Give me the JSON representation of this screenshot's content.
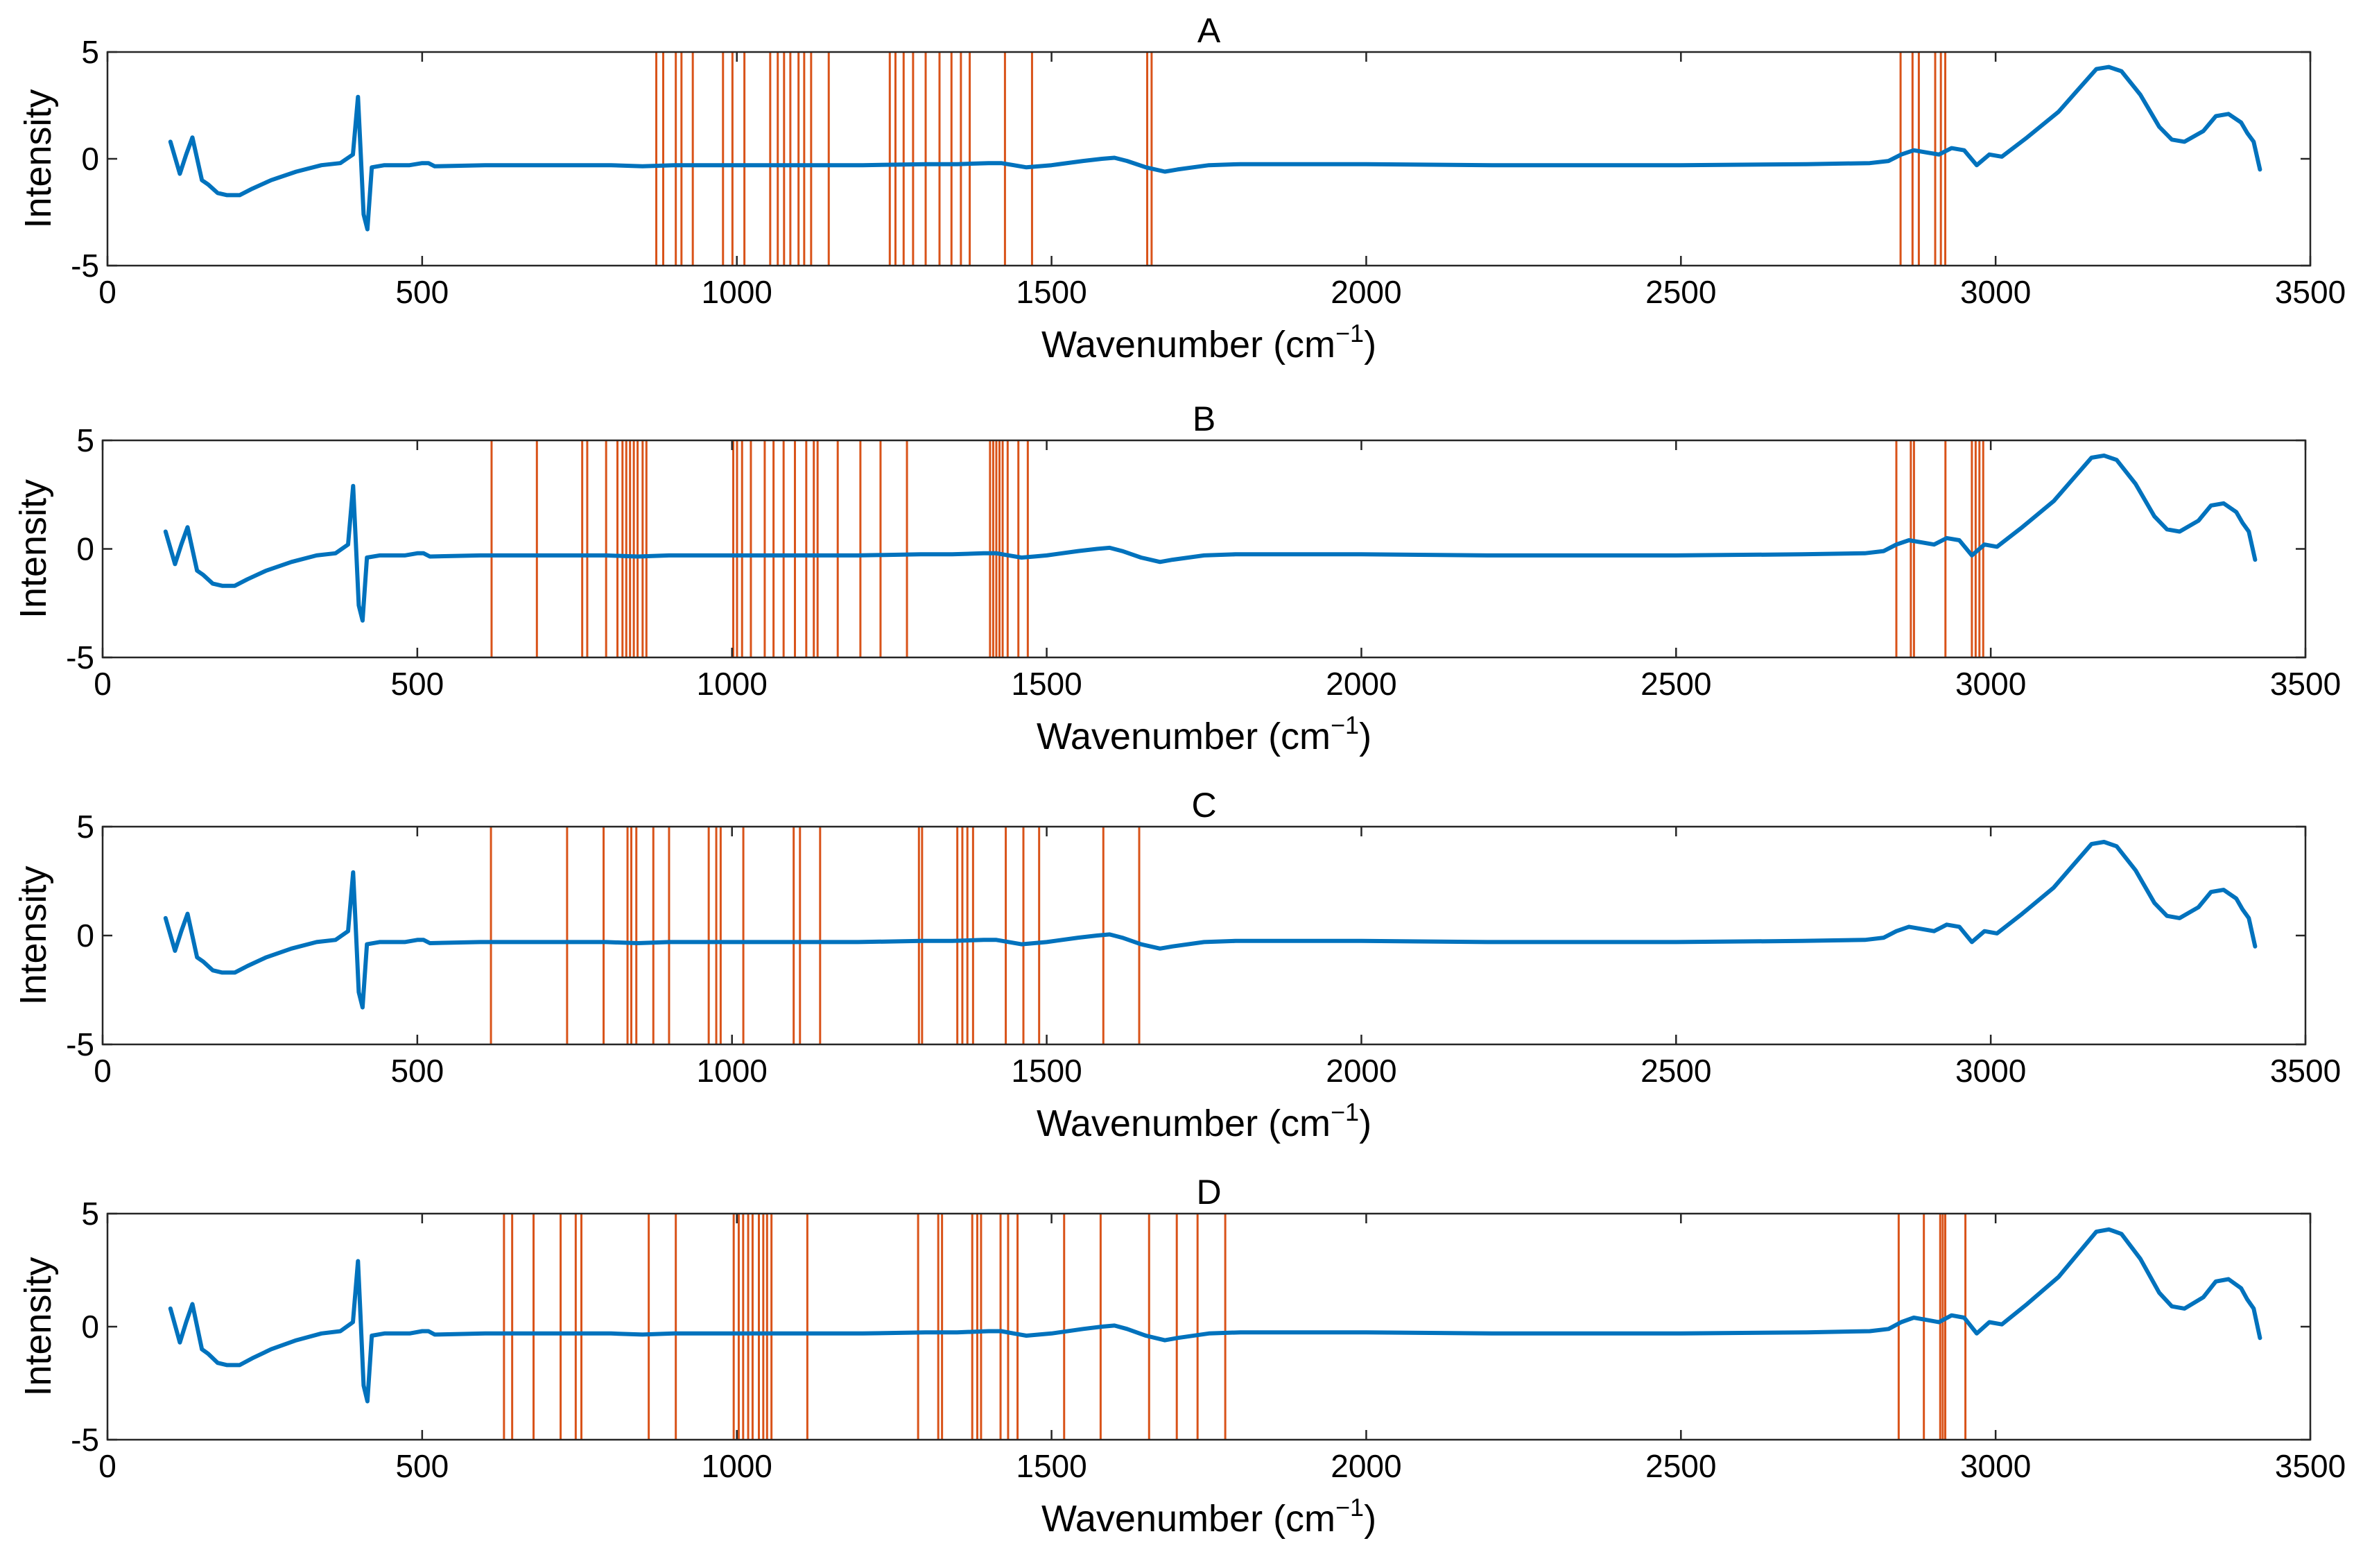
{
  "colors": {
    "spectrum": "#0072BD",
    "marker": "#D95319"
  },
  "chart_data": [
    {
      "type": "line",
      "title": "A",
      "xlabel": "Wavenumber (cm",
      "xlabel_sup": "−1",
      "xlabel_close": ")",
      "ylabel": "Intensity",
      "xlim": [
        0,
        3500
      ],
      "ylim": [
        -5,
        5
      ],
      "xticks": [
        "0",
        "500",
        "1000",
        "1500",
        "2000",
        "2500",
        "3000",
        "3500"
      ],
      "yticks": [
        "5",
        "0",
        "-5"
      ],
      "series": [
        {
          "name": "spectrum",
          "x": [
            100,
            115,
            125,
            135,
            150,
            160,
            175,
            190,
            210,
            230,
            260,
            300,
            340,
            370,
            390,
            398,
            402,
            407,
            413,
            420,
            440,
            480,
            500,
            510,
            520,
            600,
            700,
            800,
            850,
            900,
            1000,
            1100,
            1200,
            1300,
            1350,
            1400,
            1420,
            1440,
            1460,
            1480,
            1500,
            1550,
            1580,
            1600,
            1620,
            1650,
            1680,
            1700,
            1750,
            1800,
            2000,
            2200,
            2500,
            2700,
            2800,
            2830,
            2850,
            2870,
            2890,
            2910,
            2930,
            2950,
            2970,
            2990,
            3010,
            3050,
            3100,
            3130,
            3160,
            3180,
            3200,
            3230,
            3260,
            3280,
            3300,
            3330,
            3350,
            3370,
            3390,
            3400,
            3410,
            3420
          ],
          "y": [
            0.8,
            -0.7,
            0.2,
            1.0,
            -1.0,
            -1.2,
            -1.6,
            -1.7,
            -1.7,
            -1.4,
            -1.0,
            -0.6,
            -0.3,
            -0.2,
            0.2,
            2.9,
            0.5,
            -2.6,
            -3.3,
            -0.4,
            -0.3,
            -0.3,
            -0.2,
            -0.2,
            -0.35,
            -0.3,
            -0.3,
            -0.3,
            -0.35,
            -0.3,
            -0.3,
            -0.3,
            -0.3,
            -0.25,
            -0.25,
            -0.2,
            -0.2,
            -0.3,
            -0.4,
            -0.35,
            -0.3,
            -0.1,
            0.0,
            0.05,
            -0.1,
            -0.4,
            -0.6,
            -0.5,
            -0.3,
            -0.25,
            -0.25,
            -0.3,
            -0.3,
            -0.25,
            -0.2,
            -0.1,
            0.2,
            0.4,
            0.3,
            0.2,
            0.5,
            0.4,
            -0.3,
            0.2,
            0.1,
            1.0,
            2.2,
            3.2,
            4.2,
            4.3,
            4.1,
            3.0,
            1.5,
            0.9,
            0.8,
            1.3,
            2.0,
            2.1,
            1.7,
            1.2,
            0.8,
            -0.5
          ]
        }
      ],
      "markers": [
        872,
        883,
        903,
        912,
        930,
        978,
        993,
        1012,
        1053,
        1065,
        1075,
        1085,
        1098,
        1107,
        1118,
        1146,
        1243,
        1252,
        1265,
        1280,
        1300,
        1322,
        1341,
        1356,
        1370,
        1426,
        1469,
        1652,
        1659,
        2849,
        2868,
        2878,
        2904,
        2913,
        2920
      ]
    },
    {
      "type": "line",
      "title": "B",
      "xlabel": "Wavenumber (cm",
      "xlabel_sup": "−1",
      "xlabel_close": ")",
      "ylabel": "Intensity",
      "xlim": [
        0,
        3500
      ],
      "ylim": [
        -5,
        5
      ],
      "xticks": [
        "0",
        "500",
        "1000",
        "1500",
        "2000",
        "2500",
        "3000",
        "3500"
      ],
      "yticks": [
        "5",
        "0",
        "-5"
      ],
      "series": [
        {
          "name": "spectrum",
          "x": [
            100,
            115,
            125,
            135,
            150,
            160,
            175,
            190,
            210,
            230,
            260,
            300,
            340,
            370,
            390,
            398,
            402,
            407,
            413,
            420,
            440,
            480,
            500,
            510,
            520,
            600,
            700,
            800,
            850,
            900,
            1000,
            1100,
            1200,
            1300,
            1350,
            1400,
            1420,
            1440,
            1460,
            1480,
            1500,
            1550,
            1580,
            1600,
            1620,
            1650,
            1680,
            1700,
            1750,
            1800,
            2000,
            2200,
            2500,
            2700,
            2800,
            2830,
            2850,
            2870,
            2890,
            2910,
            2930,
            2950,
            2970,
            2990,
            3010,
            3050,
            3100,
            3130,
            3160,
            3180,
            3200,
            3230,
            3260,
            3280,
            3300,
            3330,
            3350,
            3370,
            3390,
            3400,
            3410,
            3420
          ],
          "y": [
            0.8,
            -0.7,
            0.2,
            1.0,
            -1.0,
            -1.2,
            -1.6,
            -1.7,
            -1.7,
            -1.4,
            -1.0,
            -0.6,
            -0.3,
            -0.2,
            0.2,
            2.9,
            0.5,
            -2.6,
            -3.3,
            -0.4,
            -0.3,
            -0.3,
            -0.2,
            -0.2,
            -0.35,
            -0.3,
            -0.3,
            -0.3,
            -0.35,
            -0.3,
            -0.3,
            -0.3,
            -0.3,
            -0.25,
            -0.25,
            -0.2,
            -0.2,
            -0.3,
            -0.4,
            -0.35,
            -0.3,
            -0.1,
            0.0,
            0.05,
            -0.1,
            -0.4,
            -0.6,
            -0.5,
            -0.3,
            -0.25,
            -0.25,
            -0.3,
            -0.3,
            -0.25,
            -0.2,
            -0.1,
            0.2,
            0.4,
            0.3,
            0.2,
            0.5,
            0.4,
            -0.3,
            0.2,
            0.1,
            1.0,
            2.2,
            3.2,
            4.2,
            4.3,
            4.1,
            3.0,
            1.5,
            0.9,
            0.8,
            1.3,
            2.0,
            2.1,
            1.7,
            1.2,
            0.8,
            -0.5
          ]
        }
      ],
      "markers": [
        618,
        690,
        762,
        770,
        800,
        818,
        826,
        832,
        838,
        844,
        850,
        858,
        864,
        1002,
        1008,
        1016,
        1030,
        1052,
        1066,
        1082,
        1100,
        1118,
        1130,
        1136,
        1168,
        1204,
        1236,
        1278,
        1410,
        1415,
        1420,
        1425,
        1430,
        1438,
        1455,
        1470,
        2850,
        2873,
        2878,
        2928,
        2970,
        2976,
        2982,
        2988
      ]
    },
    {
      "type": "line",
      "title": "C",
      "xlabel": "Wavenumber (cm",
      "xlabel_sup": "−1",
      "xlabel_close": ")",
      "ylabel": "Intensity",
      "xlim": [
        0,
        3500
      ],
      "ylim": [
        -5,
        5
      ],
      "xticks": [
        "0",
        "500",
        "1000",
        "1500",
        "2000",
        "2500",
        "3000",
        "3500"
      ],
      "yticks": [
        "5",
        "0",
        "-5"
      ],
      "series": [
        {
          "name": "spectrum",
          "x": [
            100,
            115,
            125,
            135,
            150,
            160,
            175,
            190,
            210,
            230,
            260,
            300,
            340,
            370,
            390,
            398,
            402,
            407,
            413,
            420,
            440,
            480,
            500,
            510,
            520,
            600,
            700,
            800,
            850,
            900,
            1000,
            1100,
            1200,
            1300,
            1350,
            1400,
            1420,
            1440,
            1460,
            1480,
            1500,
            1550,
            1580,
            1600,
            1620,
            1650,
            1680,
            1700,
            1750,
            1800,
            2000,
            2200,
            2500,
            2700,
            2800,
            2830,
            2850,
            2870,
            2890,
            2910,
            2930,
            2950,
            2970,
            2990,
            3010,
            3050,
            3100,
            3130,
            3160,
            3180,
            3200,
            3230,
            3260,
            3280,
            3300,
            3330,
            3350,
            3370,
            3390,
            3400,
            3410,
            3420
          ],
          "y": [
            0.8,
            -0.7,
            0.2,
            1.0,
            -1.0,
            -1.2,
            -1.6,
            -1.7,
            -1.7,
            -1.4,
            -1.0,
            -0.6,
            -0.3,
            -0.2,
            0.2,
            2.9,
            0.5,
            -2.6,
            -3.3,
            -0.4,
            -0.3,
            -0.3,
            -0.2,
            -0.2,
            -0.35,
            -0.3,
            -0.3,
            -0.3,
            -0.35,
            -0.3,
            -0.3,
            -0.3,
            -0.3,
            -0.25,
            -0.25,
            -0.2,
            -0.2,
            -0.3,
            -0.4,
            -0.35,
            -0.3,
            -0.1,
            0.0,
            0.05,
            -0.1,
            -0.4,
            -0.6,
            -0.5,
            -0.3,
            -0.25,
            -0.25,
            -0.3,
            -0.3,
            -0.25,
            -0.2,
            -0.1,
            0.2,
            0.4,
            0.3,
            0.2,
            0.5,
            0.4,
            -0.3,
            0.2,
            0.1,
            1.0,
            2.2,
            3.2,
            4.2,
            4.3,
            4.1,
            3.0,
            1.5,
            0.9,
            0.8,
            1.3,
            2.0,
            2.1,
            1.7,
            1.2,
            0.8,
            -0.5
          ]
        }
      ],
      "markers": [
        617,
        738,
        796,
        834,
        840,
        848,
        875,
        900,
        963,
        975,
        982,
        1018,
        1098,
        1108,
        1140,
        1297,
        1302,
        1358,
        1366,
        1374,
        1383,
        1435,
        1463,
        1488,
        1590,
        1647
      ]
    },
    {
      "type": "line",
      "title": "D",
      "xlabel": "Wavenumber (cm",
      "xlabel_sup": "−1",
      "xlabel_close": ")",
      "ylabel": "Intensity",
      "xlim": [
        0,
        3500
      ],
      "ylim": [
        -5,
        5
      ],
      "xticks": [
        "0",
        "500",
        "1000",
        "1500",
        "2000",
        "2500",
        "3000",
        "3500"
      ],
      "yticks": [
        "5",
        "0",
        "-5"
      ],
      "series": [
        {
          "name": "spectrum",
          "x": [
            100,
            115,
            125,
            135,
            150,
            160,
            175,
            190,
            210,
            230,
            260,
            300,
            340,
            370,
            390,
            398,
            402,
            407,
            413,
            420,
            440,
            480,
            500,
            510,
            520,
            600,
            700,
            800,
            850,
            900,
            1000,
            1100,
            1200,
            1300,
            1350,
            1400,
            1420,
            1440,
            1460,
            1480,
            1500,
            1550,
            1580,
            1600,
            1620,
            1650,
            1680,
            1700,
            1750,
            1800,
            2000,
            2200,
            2500,
            2700,
            2800,
            2830,
            2850,
            2870,
            2890,
            2910,
            2930,
            2950,
            2970,
            2990,
            3010,
            3050,
            3100,
            3130,
            3160,
            3180,
            3200,
            3230,
            3260,
            3280,
            3300,
            3330,
            3350,
            3370,
            3390,
            3400,
            3410,
            3420
          ],
          "y": [
            0.8,
            -0.7,
            0.2,
            1.0,
            -1.0,
            -1.2,
            -1.6,
            -1.7,
            -1.7,
            -1.4,
            -1.0,
            -0.6,
            -0.3,
            -0.2,
            0.2,
            2.9,
            0.5,
            -2.6,
            -3.3,
            -0.4,
            -0.3,
            -0.3,
            -0.2,
            -0.2,
            -0.35,
            -0.3,
            -0.3,
            -0.3,
            -0.35,
            -0.3,
            -0.3,
            -0.3,
            -0.3,
            -0.25,
            -0.25,
            -0.2,
            -0.2,
            -0.3,
            -0.4,
            -0.35,
            -0.3,
            -0.1,
            0.0,
            0.05,
            -0.1,
            -0.4,
            -0.6,
            -0.5,
            -0.3,
            -0.25,
            -0.25,
            -0.3,
            -0.3,
            -0.25,
            -0.2,
            -0.1,
            0.2,
            0.4,
            0.3,
            0.2,
            0.5,
            0.4,
            -0.3,
            0.2,
            0.1,
            1.0,
            2.2,
            3.2,
            4.2,
            4.3,
            4.1,
            3.0,
            1.5,
            0.9,
            0.8,
            1.3,
            2.0,
            2.1,
            1.7,
            1.2,
            0.8,
            -0.5
          ]
        }
      ],
      "markers": [
        630,
        643,
        677,
        720,
        744,
        753,
        860,
        903,
        995,
        1003,
        1010,
        1018,
        1025,
        1035,
        1042,
        1048,
        1055,
        1112,
        1288,
        1320,
        1326,
        1374,
        1382,
        1388,
        1419,
        1431,
        1446,
        1520,
        1578,
        1655,
        1699,
        1732,
        1776,
        2846,
        2886,
        2912,
        2916,
        2920,
        2952
      ]
    }
  ]
}
